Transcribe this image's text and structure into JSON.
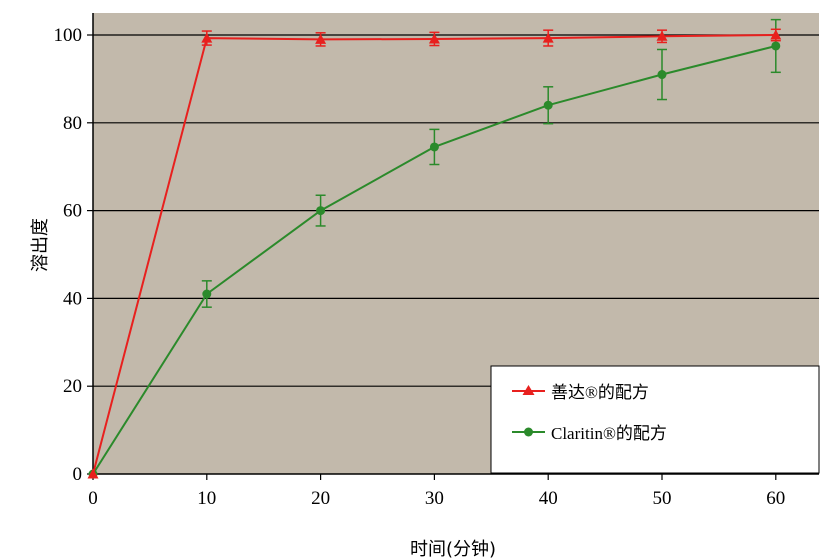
{
  "chart_data": {
    "type": "line",
    "xlabel": "时间(分钟)",
    "ylabel": "溶出度",
    "xlim": [
      0,
      62
    ],
    "ylim": [
      0,
      105
    ],
    "x_ticks": [
      0,
      10,
      20,
      30,
      40,
      50,
      60
    ],
    "y_ticks": [
      0,
      20,
      40,
      60,
      80,
      100
    ],
    "grid": "horizontal",
    "plot_background": "#c2b9ab",
    "legend_position": "bottom-right",
    "series": [
      {
        "name": "善达®的配方",
        "color": "#e8201e",
        "marker": "triangle",
        "x": [
          0,
          10,
          20,
          30,
          40,
          50,
          60
        ],
        "y": [
          0,
          99.3,
          99.0,
          99.1,
          99.3,
          99.7,
          100.0
        ],
        "err": [
          0,
          1.6,
          1.5,
          1.5,
          1.8,
          1.4,
          1.3
        ]
      },
      {
        "name": "Claritin®的配方",
        "color": "#2b8a2b",
        "marker": "circle",
        "x": [
          0,
          10,
          20,
          30,
          40,
          50,
          60
        ],
        "y": [
          0,
          41.0,
          60.0,
          74.5,
          84.0,
          91.0,
          97.5
        ],
        "err": [
          0,
          3.0,
          3.5,
          4.0,
          4.2,
          5.7,
          6.0
        ]
      }
    ]
  }
}
